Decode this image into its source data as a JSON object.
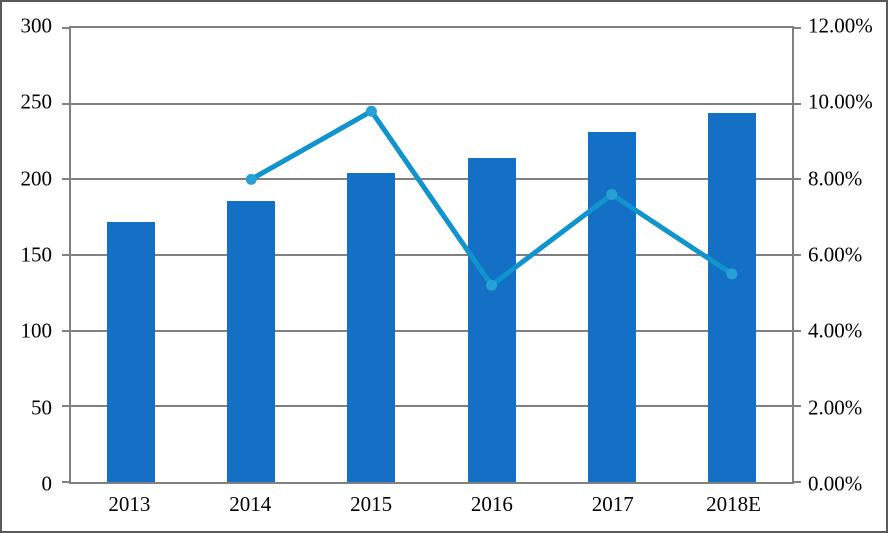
{
  "chart_data": {
    "type": "combo-bar-line",
    "title": "",
    "categories": [
      "2013",
      "2014",
      "2015",
      "2016",
      "2017",
      "2018E"
    ],
    "series": [
      {
        "name": "value-bars",
        "type": "bar",
        "axis": "left",
        "values": [
          172,
          186,
          204,
          214,
          231,
          244
        ],
        "color": "#1470C5"
      },
      {
        "name": "growth-rate-line",
        "type": "line",
        "axis": "right",
        "values": [
          null,
          8.0,
          9.8,
          5.2,
          7.6,
          5.5
        ],
        "color": "#1193CD",
        "marker_color": "#27A0D5"
      }
    ],
    "left_axis": {
      "min": 0,
      "max": 300,
      "step": 50,
      "tick_labels": [
        "300",
        "250",
        "200",
        "150",
        "100",
        "50",
        "0"
      ]
    },
    "right_axis": {
      "min": 0,
      "max": 12,
      "step": 2,
      "tick_labels": [
        "12.00%",
        "10.00%",
        "8.00%",
        "6.00%",
        "4.00%",
        "2.00%",
        "0.00%"
      ]
    },
    "grid": true,
    "legend": false,
    "colors": {
      "gridline": "#808080",
      "plot_border": "#808080",
      "frame_border": "#595959",
      "text": "#000000",
      "background": "#ffffff"
    }
  }
}
